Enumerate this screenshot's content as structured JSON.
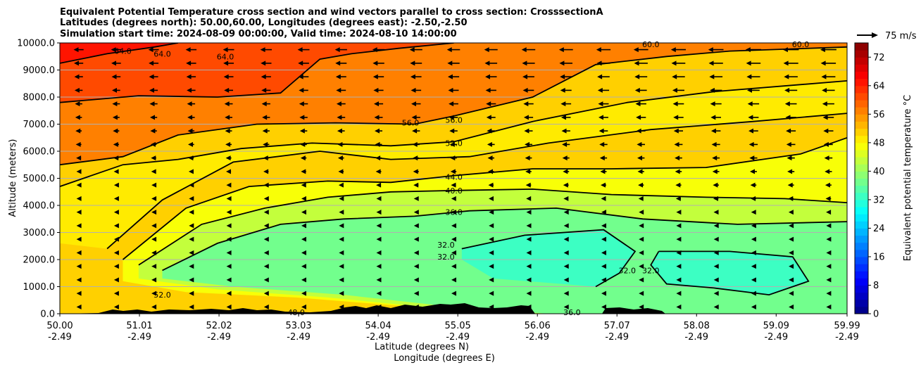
{
  "chart_data": {
    "type": "cross-section",
    "title_lines": [
      "Equivalent Potential Temperature cross section and wind vectors parallel to cross section: CrosssectionA",
      "Latitudes (degrees north): 50.00,60.00, Longitudes (degrees east): -2.50,-2.50",
      "Simulation start time: 2024-08-09 00:00:00, Valid time: 2024-08-10 14:00:00"
    ],
    "xlabel_lines": [
      "Latitude (degrees N)",
      "Longitude (degrees E)"
    ],
    "ylabel": "Altitude (meters)",
    "colorbar_label": "Equivalent potential temperature $^\\circ$C",
    "colorbar_label_display": "Equivalent potential temperature °C",
    "quiver_key": "75 m/s",
    "xlim": [
      50.0,
      59.99
    ],
    "ylim": [
      0,
      10000
    ],
    "clim": [
      0,
      76
    ],
    "x_ticks": [
      {
        "lat": 50.0,
        "lat_label": "50.00",
        "lon_label": "-2.49"
      },
      {
        "lat": 51.01,
        "lat_label": "51.01",
        "lon_label": "-2.49"
      },
      {
        "lat": 52.02,
        "lat_label": "52.02",
        "lon_label": "-2.49"
      },
      {
        "lat": 53.03,
        "lat_label": "53.03",
        "lon_label": "-2.49"
      },
      {
        "lat": 54.04,
        "lat_label": "54.04",
        "lon_label": "-2.49"
      },
      {
        "lat": 55.05,
        "lat_label": "55.05",
        "lon_label": "-2.49"
      },
      {
        "lat": 56.06,
        "lat_label": "56.06",
        "lon_label": "-2.49"
      },
      {
        "lat": 57.07,
        "lat_label": "57.07",
        "lon_label": "-2.49"
      },
      {
        "lat": 58.08,
        "lat_label": "58.08",
        "lon_label": "-2.49"
      },
      {
        "lat": 59.09,
        "lat_label": "59.09",
        "lon_label": "-2.49"
      },
      {
        "lat": 59.99,
        "lat_label": "59.99",
        "lon_label": "-2.49"
      }
    ],
    "y_ticks": [
      {
        "value": 0,
        "label": "0.0"
      },
      {
        "value": 1000,
        "label": "1000.0"
      },
      {
        "value": 2000,
        "label": "2000.0"
      },
      {
        "value": 3000,
        "label": "3000.0"
      },
      {
        "value": 4000,
        "label": "4000.0"
      },
      {
        "value": 5000,
        "label": "5000.0"
      },
      {
        "value": 6000,
        "label": "6000.0"
      },
      {
        "value": 7000,
        "label": "7000.0"
      },
      {
        "value": 8000,
        "label": "8000.0"
      },
      {
        "value": 9000,
        "label": "9000.0"
      },
      {
        "value": 10000,
        "label": "10000.0"
      }
    ],
    "colorbar_ticks": [
      {
        "value": 0,
        "label": "0"
      },
      {
        "value": 8,
        "label": "8"
      },
      {
        "value": 16,
        "label": "16"
      },
      {
        "value": 24,
        "label": "24"
      },
      {
        "value": 32,
        "label": "32"
      },
      {
        "value": 40,
        "label": "40"
      },
      {
        "value": 48,
        "label": "48"
      },
      {
        "value": 56,
        "label": "56"
      },
      {
        "value": 64,
        "label": "64"
      },
      {
        "value": 72,
        "label": "72"
      }
    ],
    "contours": [
      {
        "level": 64,
        "points": [
          [
            50.0,
            9250
          ],
          [
            50.6,
            9600
          ],
          [
            51.2,
            9850
          ],
          [
            51.5,
            10000
          ]
        ]
      },
      {
        "level": 60,
        "points": [
          [
            50.0,
            7800
          ],
          [
            51.0,
            8050
          ],
          [
            52.0,
            8000
          ],
          [
            52.8,
            8150
          ],
          [
            53.3,
            9400
          ],
          [
            53.7,
            9600
          ],
          [
            54.3,
            9800
          ],
          [
            55.0,
            10000
          ]
        ]
      },
      {
        "level": 56,
        "points": [
          [
            50.0,
            5500
          ],
          [
            50.8,
            5800
          ],
          [
            51.5,
            6600
          ],
          [
            52.5,
            7000
          ],
          [
            53.5,
            7050
          ],
          [
            54.5,
            7000
          ],
          [
            55.0,
            7300
          ],
          [
            56.0,
            8000
          ],
          [
            56.8,
            9200
          ],
          [
            57.7,
            9500
          ],
          [
            58.5,
            9700
          ],
          [
            59.99,
            9850
          ]
        ]
      },
      {
        "level": 52,
        "points": [
          [
            50.0,
            4700
          ],
          [
            50.8,
            5500
          ],
          [
            51.5,
            5700
          ],
          [
            52.3,
            6100
          ],
          [
            53.2,
            6300
          ],
          [
            54.2,
            6200
          ],
          [
            55.0,
            6350
          ],
          [
            56.0,
            7100
          ],
          [
            57.2,
            7800
          ],
          [
            58.3,
            8200
          ],
          [
            59.99,
            8600
          ]
        ]
      },
      {
        "level": 48,
        "points": [
          [
            50.6,
            2400
          ],
          [
            51.3,
            4200
          ],
          [
            52.2,
            5600
          ],
          [
            53.3,
            6000
          ],
          [
            54.2,
            5700
          ],
          [
            55.2,
            5800
          ],
          [
            56.2,
            6300
          ],
          [
            57.5,
            6800
          ],
          [
            58.8,
            7100
          ],
          [
            59.99,
            7400
          ]
        ]
      },
      {
        "level": 44,
        "points": [
          [
            50.8,
            2000
          ],
          [
            51.6,
            3900
          ],
          [
            52.4,
            4700
          ],
          [
            53.4,
            4900
          ],
          [
            54.2,
            4850
          ],
          [
            55.0,
            5100
          ],
          [
            56.0,
            5350
          ],
          [
            57.0,
            5350
          ],
          [
            58.2,
            5400
          ],
          [
            59.4,
            5900
          ],
          [
            59.99,
            6500
          ]
        ]
      },
      {
        "level": 40,
        "points": [
          [
            51.0,
            1800
          ],
          [
            51.8,
            3300
          ],
          [
            52.6,
            3900
          ],
          [
            53.4,
            4300
          ],
          [
            54.2,
            4500
          ],
          [
            55.0,
            4550
          ],
          [
            56.0,
            4600
          ],
          [
            57.0,
            4400
          ],
          [
            58.2,
            4300
          ],
          [
            59.2,
            4250
          ],
          [
            59.99,
            4100
          ]
        ]
      },
      {
        "level": 36,
        "points": [
          [
            51.3,
            1600
          ],
          [
            52.0,
            2600
          ],
          [
            52.8,
            3300
          ],
          [
            53.6,
            3500
          ],
          [
            54.5,
            3600
          ],
          [
            55.2,
            3800
          ],
          [
            56.3,
            3900
          ],
          [
            57.4,
            3500
          ],
          [
            58.6,
            3300
          ],
          [
            59.99,
            3400
          ]
        ]
      },
      {
        "level": 32,
        "points": [
          [
            55.1,
            2400
          ],
          [
            55.9,
            2900
          ],
          [
            56.9,
            3100
          ],
          [
            57.3,
            2300
          ],
          [
            57.1,
            1500
          ],
          [
            56.8,
            1000
          ]
        ]
      },
      {
        "level": 32,
        "points": [
          [
            57.6,
            2300
          ],
          [
            58.5,
            2300
          ],
          [
            59.3,
            2100
          ],
          [
            59.5,
            1200
          ],
          [
            59.0,
            700
          ],
          [
            58.3,
            950
          ],
          [
            57.7,
            1100
          ],
          [
            57.5,
            1800
          ],
          [
            57.6,
            2300
          ]
        ]
      }
    ],
    "contour_labels": [
      {
        "text": "64.0",
        "lat": 50.8,
        "alt": 9700
      },
      {
        "text": "64.0",
        "lat": 51.3,
        "alt": 9600
      },
      {
        "text": "64.0",
        "lat": 52.1,
        "alt": 9500
      },
      {
        "text": "56.0",
        "lat": 54.45,
        "alt": 7050
      },
      {
        "text": "56.0",
        "lat": 55.0,
        "alt": 7150
      },
      {
        "text": "52.0",
        "lat": 55.0,
        "alt": 6300
      },
      {
        "text": "44.0",
        "lat": 55.0,
        "alt": 5050
      },
      {
        "text": "40.0",
        "lat": 55.0,
        "alt": 4550
      },
      {
        "text": "36.0",
        "lat": 55.0,
        "alt": 3750
      },
      {
        "text": "32.0",
        "lat": 54.9,
        "alt": 2550
      },
      {
        "text": "32.0",
        "lat": 54.9,
        "alt": 2100
      },
      {
        "text": "32.0",
        "lat": 57.2,
        "alt": 1600
      },
      {
        "text": "32.0",
        "lat": 57.5,
        "alt": 1600
      },
      {
        "text": "52.0",
        "lat": 51.3,
        "alt": 700
      },
      {
        "text": "48.0",
        "lat": 53.0,
        "alt": 50
      },
      {
        "text": "36.0",
        "lat": 56.5,
        "alt": 50
      },
      {
        "text": "60.0",
        "lat": 57.5,
        "alt": 9950
      },
      {
        "text": "60.0",
        "lat": 59.4,
        "alt": 9950
      }
    ],
    "wind": {
      "description": "wind vectors parallel to cross section, mostly pointing towards lower latitude",
      "columns": 21,
      "rows": 20,
      "max_speed_ms": 60,
      "key_speed_ms": 75
    }
  }
}
